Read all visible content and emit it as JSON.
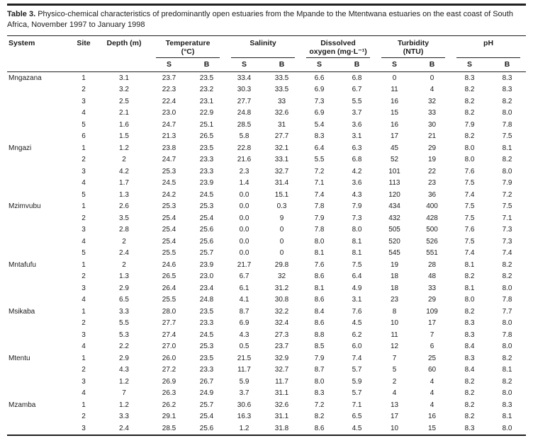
{
  "colors": {
    "rule": "#1f1f1f",
    "text": "#1b1b1b",
    "background": "#ffffff"
  },
  "table": {
    "label": "Table 3.",
    "title": "Physico-chemical characteristics of predominantly open estuaries from the Mpande to the Mtentwana estuaries on the east coast of South Africa, November 1997 to January 1998",
    "columns": {
      "system": "System",
      "site": "Site",
      "depth": "Depth (m)",
      "sub_headers": [
        "S",
        "B"
      ],
      "groups": [
        {
          "line1": "Temperature",
          "line2": "(°C)"
        },
        {
          "line1": "Salinity",
          "line2": ""
        },
        {
          "line1": "Dissolved",
          "line2": "oxygen (mg·L⁻¹)"
        },
        {
          "line1": "Turbidity",
          "line2": "(NTU)"
        },
        {
          "line1": "pH",
          "line2": ""
        }
      ]
    },
    "systems": [
      {
        "name": "Mngazana",
        "rows": [
          [
            "1",
            "3.1",
            "23.7",
            "23.5",
            "33.4",
            "33.5",
            "6.6",
            "6.8",
            "0",
            "0",
            "8.3",
            "8.3"
          ],
          [
            "2",
            "3.2",
            "22.3",
            "23.2",
            "30.3",
            "33.5",
            "6.9",
            "6.7",
            "11",
            "4",
            "8.2",
            "8.3"
          ],
          [
            "3",
            "2.5",
            "22.4",
            "23.1",
            "27.7",
            "33",
            "7.3",
            "5.5",
            "16",
            "32",
            "8.2",
            "8.2"
          ],
          [
            "4",
            "2.1",
            "23.0",
            "22.9",
            "24.8",
            "32.6",
            "6.9",
            "3.7",
            "15",
            "33",
            "8.2",
            "8.0"
          ],
          [
            "5",
            "1.6",
            "24.7",
            "25.1",
            "28.5",
            "31",
            "5.4",
            "3.6",
            "16",
            "30",
            "7.9",
            "7.8"
          ],
          [
            "6",
            "1.5",
            "21.3",
            "26.5",
            "5.8",
            "27.7",
            "8.3",
            "3.1",
            "17",
            "21",
            "8.2",
            "7.5"
          ]
        ]
      },
      {
        "name": "Mngazi",
        "rows": [
          [
            "1",
            "1.2",
            "23.8",
            "23.5",
            "22.8",
            "32.1",
            "6.4",
            "6.3",
            "45",
            "29",
            "8.0",
            "8.1"
          ],
          [
            "2",
            "2",
            "24.7",
            "23.3",
            "21.6",
            "33.1",
            "5.5",
            "6.8",
            "52",
            "19",
            "8.0",
            "8.2"
          ],
          [
            "3",
            "4.2",
            "25.3",
            "23.3",
            "2.3",
            "32.7",
            "7.2",
            "4.2",
            "101",
            "22",
            "7.6",
            "8.0"
          ],
          [
            "4",
            "1.7",
            "24.5",
            "23.9",
            "1.4",
            "31.4",
            "7.1",
            "3.6",
            "113",
            "23",
            "7.5",
            "7.9"
          ],
          [
            "5",
            "1.3",
            "24.2",
            "24.5",
            "0.0",
            "15.1",
            "7.4",
            "4.3",
            "120",
            "36",
            "7.4",
            "7.2"
          ]
        ]
      },
      {
        "name": "Mzimvubu",
        "rows": [
          [
            "1",
            "2.6",
            "25.3",
            "25.3",
            "0.0",
            "0.3",
            "7.8",
            "7.9",
            "434",
            "400",
            "7.5",
            "7.5"
          ],
          [
            "2",
            "3.5",
            "25.4",
            "25.4",
            "0.0",
            "9",
            "7.9",
            "7.3",
            "432",
            "428",
            "7.5",
            "7.1"
          ],
          [
            "3",
            "2.8",
            "25.4",
            "25.6",
            "0.0",
            "0",
            "7.8",
            "8.0",
            "505",
            "500",
            "7.6",
            "7.3"
          ],
          [
            "4",
            "2",
            "25.4",
            "25.6",
            "0.0",
            "0",
            "8.0",
            "8.1",
            "520",
            "526",
            "7.5",
            "7.3"
          ],
          [
            "5",
            "2.4",
            "25.5",
            "25.7",
            "0.0",
            "0",
            "8.1",
            "8.1",
            "545",
            "551",
            "7.4",
            "7.4"
          ]
        ]
      },
      {
        "name": "Mntafufu",
        "rows": [
          [
            "1",
            "2",
            "24.6",
            "23.9",
            "21.7",
            "29.8",
            "7.6",
            "7.5",
            "19",
            "28",
            "8.1",
            "8.2"
          ],
          [
            "2",
            "1.3",
            "26.5",
            "23.0",
            "6.7",
            "32",
            "8.6",
            "6.4",
            "18",
            "48",
            "8.2",
            "8.2"
          ],
          [
            "3",
            "2.9",
            "26.4",
            "23.4",
            "6.1",
            "31.2",
            "8.1",
            "4.9",
            "18",
            "33",
            "8.1",
            "8.0"
          ],
          [
            "4",
            "6.5",
            "25.5",
            "24.8",
            "4.1",
            "30.8",
            "8.6",
            "3.1",
            "23",
            "29",
            "8.0",
            "7.8"
          ]
        ]
      },
      {
        "name": "Msikaba",
        "rows": [
          [
            "1",
            "3.3",
            "28.0",
            "23.5",
            "8.7",
            "32.2",
            "8.4",
            "7.6",
            "8",
            "109",
            "8.2",
            "7.7"
          ],
          [
            "2",
            "5.5",
            "27.7",
            "23.3",
            "6.9",
            "32.4",
            "8.6",
            "4.5",
            "10",
            "17",
            "8.3",
            "8.0"
          ],
          [
            "3",
            "5.3",
            "27.4",
            "24.5",
            "4.3",
            "27.3",
            "8.8",
            "6.2",
            "11",
            "7",
            "8.3",
            "7.8"
          ],
          [
            "4",
            "2.2",
            "27.0",
            "25.3",
            "0.5",
            "23.7",
            "8.5",
            "6.0",
            "12",
            "6",
            "8.4",
            "8.0"
          ]
        ]
      },
      {
        "name": "Mtentu",
        "rows": [
          [
            "1",
            "2.9",
            "26.0",
            "23.5",
            "21.5",
            "32.9",
            "7.9",
            "7.4",
            "7",
            "25",
            "8.3",
            "8.2"
          ],
          [
            "2",
            "4.3",
            "27.2",
            "23.3",
            "11.7",
            "32.7",
            "8.7",
            "5.7",
            "5",
            "60",
            "8.4",
            "8.1"
          ],
          [
            "3",
            "1.2",
            "26.9",
            "26.7",
            "5.9",
            "11.7",
            "8.0",
            "5.9",
            "2",
            "4",
            "8.2",
            "8.2"
          ],
          [
            "4",
            "7",
            "26.3",
            "24.9",
            "3.7",
            "31.1",
            "8.3",
            "5.7",
            "4",
            "4",
            "8.2",
            "8.0"
          ]
        ]
      },
      {
        "name": "Mzamba",
        "rows": [
          [
            "1",
            "1.2",
            "26.2",
            "25.7",
            "30.6",
            "32.6",
            "7.2",
            "7.1",
            "13",
            "4",
            "8.2",
            "8.3"
          ],
          [
            "2",
            "3.3",
            "29.1",
            "25.4",
            "16.3",
            "31.1",
            "8.2",
            "6.5",
            "17",
            "16",
            "8.2",
            "8.1"
          ],
          [
            "3",
            "2.4",
            "28.5",
            "25.6",
            "1.2",
            "31.8",
            "8.6",
            "4.5",
            "10",
            "15",
            "8.3",
            "8.0"
          ]
        ]
      }
    ]
  }
}
